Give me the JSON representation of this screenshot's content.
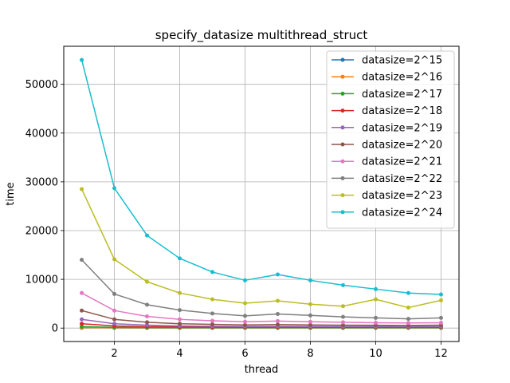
{
  "chart_data": {
    "type": "line",
    "title": "specify_datasize multithread_struct",
    "xlabel": "thread",
    "ylabel": "time",
    "x": [
      1,
      2,
      3,
      4,
      5,
      6,
      7,
      8,
      9,
      10,
      11,
      12
    ],
    "xlim": [
      0.45,
      12.55
    ],
    "ylim": [
      -2750,
      57800
    ],
    "xticks": [
      2,
      4,
      6,
      8,
      10,
      12
    ],
    "yticks": [
      0,
      10000,
      20000,
      30000,
      40000,
      50000
    ],
    "grid": true,
    "legend_position": "upper right",
    "marker": "circle",
    "series": [
      {
        "name": "datasize=2^15",
        "color": "#1f77b4",
        "values": [
          50,
          40,
          35,
          30,
          30,
          28,
          28,
          27,
          27,
          26,
          26,
          26
        ]
      },
      {
        "name": "datasize=2^16",
        "color": "#ff7f0e",
        "values": [
          100,
          70,
          60,
          55,
          50,
          50,
          50,
          48,
          48,
          47,
          47,
          47
        ]
      },
      {
        "name": "datasize=2^17",
        "color": "#2ca02c",
        "values": [
          300,
          150,
          120,
          100,
          100,
          100,
          100,
          95,
          95,
          95,
          95,
          95
        ]
      },
      {
        "name": "datasize=2^18",
        "color": "#d62728",
        "values": [
          900,
          450,
          300,
          250,
          220,
          200,
          210,
          200,
          195,
          190,
          190,
          190
        ]
      },
      {
        "name": "datasize=2^19",
        "color": "#9467bd",
        "values": [
          1800,
          900,
          600,
          450,
          380,
          330,
          360,
          330,
          320,
          310,
          300,
          310
        ]
      },
      {
        "name": "datasize=2^20",
        "color": "#8c564b",
        "values": [
          3600,
          1800,
          1200,
          900,
          760,
          650,
          720,
          650,
          600,
          580,
          550,
          600
        ]
      },
      {
        "name": "datasize=2^21",
        "color": "#e377c2",
        "values": [
          7200,
          3600,
          2400,
          1800,
          1500,
          1300,
          1450,
          1300,
          1200,
          1100,
          1050,
          1100
        ]
      },
      {
        "name": "datasize=2^22",
        "color": "#7f7f7f",
        "values": [
          14000,
          7000,
          4800,
          3700,
          3000,
          2500,
          2900,
          2600,
          2300,
          2100,
          1900,
          2100
        ]
      },
      {
        "name": "datasize=2^23",
        "color": "#bcbd22",
        "values": [
          28500,
          14100,
          9500,
          7200,
          5900,
          5100,
          5600,
          4900,
          4500,
          5900,
          4200,
          5700
        ]
      },
      {
        "name": "datasize=2^24",
        "color": "#17becf",
        "values": [
          55000,
          28700,
          19000,
          14300,
          11500,
          9800,
          11000,
          9800,
          8800,
          8000,
          7200,
          6900
        ]
      }
    ]
  }
}
